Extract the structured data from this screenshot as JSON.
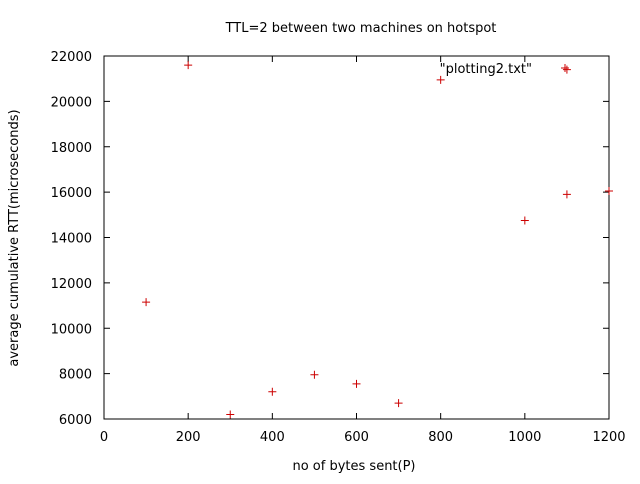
{
  "chart_data": {
    "type": "scatter",
    "title": "TTL=2 between two machines on hotspot",
    "xlabel": "no of bytes sent(P)",
    "ylabel": "average cumulative RTT(microseconds)",
    "xlim": [
      0,
      1200
    ],
    "ylim": [
      6000,
      22000
    ],
    "xticks": [
      0,
      200,
      400,
      600,
      800,
      1000,
      1200
    ],
    "yticks": [
      6000,
      8000,
      10000,
      12000,
      14000,
      16000,
      18000,
      20000,
      22000
    ],
    "grid": false,
    "legend_position": "top-right",
    "series": [
      {
        "name": "\"plotting2.txt\"",
        "color": "#cc0000",
        "marker": "plus",
        "points": [
          {
            "x": 100,
            "y": 11150
          },
          {
            "x": 200,
            "y": 21600
          },
          {
            "x": 300,
            "y": 6200
          },
          {
            "x": 400,
            "y": 7200
          },
          {
            "x": 500,
            "y": 7950
          },
          {
            "x": 600,
            "y": 7550
          },
          {
            "x": 700,
            "y": 6700
          },
          {
            "x": 800,
            "y": 20950
          },
          {
            "x": 1000,
            "y": 14750
          },
          {
            "x": 1100,
            "y": 15900
          },
          {
            "x": 1100,
            "y": 21400
          },
          {
            "x": 1200,
            "y": 16050
          }
        ]
      }
    ]
  }
}
